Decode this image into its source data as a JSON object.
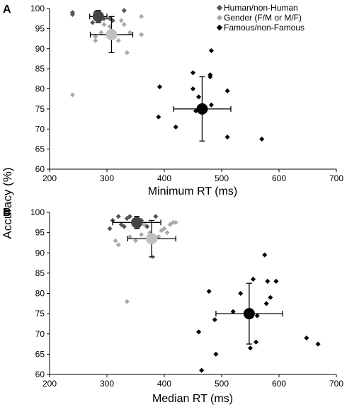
{
  "ylabel_shared": "Accuracy (%)",
  "legend": [
    {
      "label": "Human/non-Human",
      "color": "#555555"
    },
    {
      "label": "Gender (F/M or M/F)",
      "color": "#aaaaaa"
    },
    {
      "label": "Famous/non-Famous",
      "color": "#000000"
    }
  ],
  "chart_data": [
    {
      "type": "scatter",
      "panel_label": "A",
      "xlabel": "Minimum RT (ms)",
      "ylabel": "Accuracy (%)",
      "xlim": [
        200,
        700
      ],
      "ylim": [
        60,
        100
      ],
      "x_ticks": [
        200,
        300,
        400,
        500,
        600,
        700
      ],
      "y_ticks": [
        60,
        65,
        70,
        75,
        80,
        85,
        90,
        95,
        100
      ],
      "grid": false,
      "legend_position": "top-right",
      "series": [
        {
          "name": "Human/non-Human",
          "color": "#555555",
          "points": [
            [
              240,
              99
            ],
            [
              240,
              98.5
            ],
            [
              285,
              98
            ],
            [
              290,
              98
            ],
            [
              295,
              97.5
            ],
            [
              305,
              97.5
            ],
            [
              310,
              97
            ],
            [
              330,
              99.5
            ],
            [
              280,
              99
            ],
            [
              275,
              96.5
            ]
          ],
          "mean": {
            "x": 285,
            "y": 98,
            "xerr": 15,
            "yerr": 1.5
          }
        },
        {
          "name": "Gender (F/M or M/F)",
          "color": "#aaaaaa",
          "points": [
            [
              240,
              78.5
            ],
            [
              280,
              92
            ],
            [
              280,
              93
            ],
            [
              290,
              94
            ],
            [
              295,
              96
            ],
            [
              305,
              95.5
            ],
            [
              310,
              93
            ],
            [
              320,
              92
            ],
            [
              330,
              96
            ],
            [
              335,
              89
            ],
            [
              340,
              94
            ],
            [
              360,
              98
            ],
            [
              360,
              93.5
            ],
            [
              325,
              97
            ]
          ],
          "mean": {
            "x": 308,
            "y": 93.5,
            "xerr": 37,
            "yerr": 4.5
          }
        },
        {
          "name": "Famous/non-Famous",
          "color": "#000000",
          "points": [
            [
              390,
              73
            ],
            [
              392,
              80.5
            ],
            [
              420,
              70.5
            ],
            [
              450,
              84
            ],
            [
              450,
              80
            ],
            [
              455,
              74.5
            ],
            [
              460,
              78
            ],
            [
              480,
              83.5
            ],
            [
              480,
              83
            ],
            [
              482,
              89.5
            ],
            [
              482,
              76
            ],
            [
              510,
              79.5
            ],
            [
              510,
              68
            ],
            [
              570,
              67.5
            ]
          ],
          "mean": {
            "x": 466,
            "y": 75,
            "xerr": 50,
            "yerr": 8
          }
        }
      ]
    },
    {
      "type": "scatter",
      "panel_label": "B",
      "xlabel": "Median RT (ms)",
      "ylabel": "Accuracy (%)",
      "xlim": [
        200,
        700
      ],
      "ylim": [
        60,
        100
      ],
      "x_ticks": [
        200,
        300,
        400,
        500,
        600,
        700
      ],
      "y_ticks": [
        60,
        65,
        70,
        75,
        80,
        85,
        90,
        95,
        100
      ],
      "grid": false,
      "series": [
        {
          "name": "Human/non-Human",
          "color": "#555555",
          "points": [
            [
              305,
              96
            ],
            [
              310,
              98
            ],
            [
              320,
              99
            ],
            [
              325,
              97
            ],
            [
              330,
              96.5
            ],
            [
              335,
              98.5
            ],
            [
              340,
              99
            ],
            [
              345,
              97.5
            ],
            [
              350,
              97
            ],
            [
              355,
              96.5
            ],
            [
              360,
              98
            ],
            [
              365,
              97
            ],
            [
              370,
              96.5
            ],
            [
              385,
              99
            ]
          ],
          "mean": {
            "x": 352,
            "y": 97.5,
            "xerr": 42,
            "yerr": 1.5
          }
        },
        {
          "name": "Gender (F/M or M/F)",
          "color": "#aaaaaa",
          "points": [
            [
              335,
              78
            ],
            [
              315,
              93
            ],
            [
              320,
              92
            ],
            [
              340,
              94
            ],
            [
              350,
              93
            ],
            [
              360,
              94.5
            ],
            [
              365,
              97
            ],
            [
              375,
              95
            ],
            [
              380,
              89
            ],
            [
              390,
              94
            ],
            [
              395,
              95.5
            ],
            [
              400,
              96
            ],
            [
              405,
              95
            ],
            [
              410,
              97
            ],
            [
              415,
              97.5
            ],
            [
              420,
              97.5
            ]
          ],
          "mean": {
            "x": 378,
            "y": 93.5,
            "xerr": 42,
            "yerr": 4.5
          }
        },
        {
          "name": "Famous/non-Famous",
          "color": "#000000",
          "points": [
            [
              460,
              70.5
            ],
            [
              465,
              61
            ],
            [
              478,
              80.5
            ],
            [
              488,
              73.5
            ],
            [
              490,
              65
            ],
            [
              520,
              75.5
            ],
            [
              533,
              80
            ],
            [
              550,
              66.5
            ],
            [
              555,
              83.5
            ],
            [
              560,
              68
            ],
            [
              562,
              74.5
            ],
            [
              575,
              89.5
            ],
            [
              578,
              77.5
            ],
            [
              580,
              83
            ],
            [
              585,
              79
            ],
            [
              595,
              83
            ],
            [
              648,
              69
            ],
            [
              668,
              67.5
            ]
          ],
          "mean": {
            "x": 548,
            "y": 75,
            "xerr": 58,
            "yerr": 7.5
          }
        }
      ]
    }
  ]
}
